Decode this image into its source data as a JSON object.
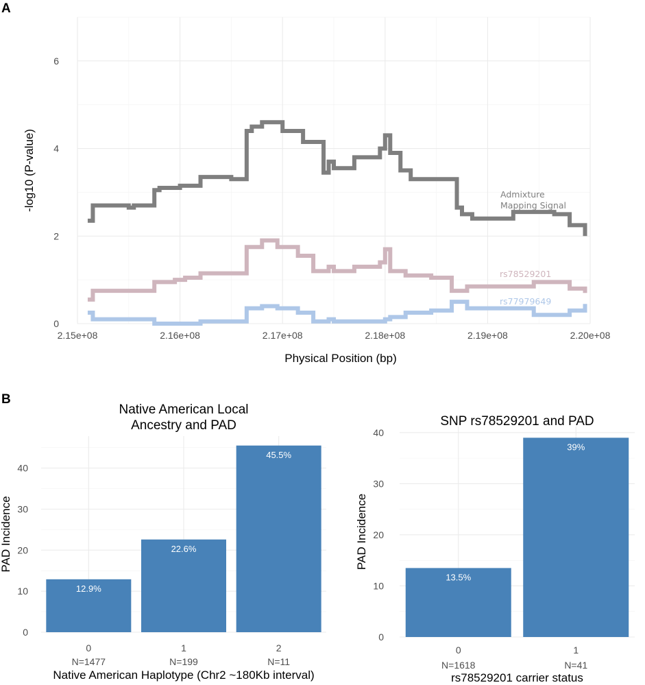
{
  "figure": {
    "panel_a_letter": "A",
    "panel_b_letter": "B"
  },
  "chart_data": [
    {
      "type": "line",
      "panel": "A",
      "title": "",
      "xlabel": "Physical Position (bp)",
      "ylabel": "-log10 (P-value)",
      "xlim": [
        215000000,
        220000000
      ],
      "ylim": [
        0,
        7
      ],
      "x_ticks": [
        215000000,
        216000000,
        217000000,
        218000000,
        219000000,
        220000000
      ],
      "x_tick_labels": [
        "2.15e+08",
        "2.16e+08",
        "2.17e+08",
        "2.18e+08",
        "2.19e+08",
        "2.20e+08"
      ],
      "y_ticks": [
        0,
        2,
        4,
        6
      ],
      "y_tick_labels": [
        "0",
        "2",
        "4",
        "6"
      ],
      "step": true,
      "series": [
        {
          "name": "Admixture Mapping Signal",
          "label_lines": [
            "Admixture",
            "Mapping Signal"
          ],
          "color": "#7f7f7f",
          "x": [
            215100000,
            215150000,
            215500000,
            215550000,
            215750000,
            215800000,
            216000000,
            216050000,
            216200000,
            216300000,
            216500000,
            216600000,
            216650000,
            216700000,
            216800000,
            217000000,
            217200000,
            217400000,
            217450000,
            217500000,
            217700000,
            217950000,
            218000000,
            218050000,
            218150000,
            218250000,
            218450000,
            218700000,
            218750000,
            218850000,
            219250000,
            219650000,
            219800000,
            219950000
          ],
          "values": [
            2.35,
            2.7,
            2.65,
            2.7,
            3.05,
            3.1,
            3.15,
            3.15,
            3.35,
            3.35,
            3.3,
            3.3,
            4.4,
            4.5,
            4.6,
            4.4,
            4.15,
            3.45,
            3.7,
            3.55,
            3.8,
            4.0,
            4.3,
            3.9,
            3.5,
            3.3,
            3.3,
            2.65,
            2.5,
            2.4,
            2.55,
            2.5,
            2.25,
            2.0
          ]
        },
        {
          "name": "rs78529201",
          "color": "#cfb5bd",
          "x": [
            215100000,
            215150000,
            215500000,
            215550000,
            215750000,
            215950000,
            216050000,
            216200000,
            216300000,
            216500000,
            216650000,
            216800000,
            216950000,
            217150000,
            217300000,
            217450000,
            217500000,
            217700000,
            217950000,
            218000000,
            218050000,
            218200000,
            218450000,
            218650000,
            218800000,
            219050000,
            219450000,
            219800000,
            219950000
          ],
          "values": [
            0.55,
            0.75,
            0.75,
            0.75,
            0.95,
            1.0,
            1.05,
            1.15,
            1.15,
            1.15,
            1.75,
            1.9,
            1.75,
            1.55,
            1.2,
            1.3,
            1.2,
            1.3,
            1.4,
            1.7,
            1.2,
            1.1,
            1.05,
            0.75,
            0.85,
            0.85,
            0.95,
            0.8,
            0.7
          ]
        },
        {
          "name": "rs77979649",
          "color": "#aec7e8",
          "x": [
            215100000,
            215150000,
            215500000,
            215550000,
            215750000,
            215950000,
            216050000,
            216200000,
            216300000,
            216500000,
            216650000,
            216800000,
            216950000,
            217150000,
            217300000,
            217450000,
            217500000,
            217700000,
            217950000,
            218000000,
            218050000,
            218200000,
            218450000,
            218650000,
            218800000,
            219050000,
            219450000,
            219800000,
            219950000
          ],
          "values": [
            0.25,
            0.1,
            0.1,
            0.1,
            0.0,
            0.0,
            0.0,
            0.05,
            0.05,
            0.05,
            0.35,
            0.4,
            0.35,
            0.25,
            0.05,
            0.1,
            0.05,
            0.05,
            0.05,
            0.1,
            0.15,
            0.25,
            0.3,
            0.5,
            0.35,
            0.35,
            0.2,
            0.3,
            0.45
          ]
        }
      ]
    },
    {
      "type": "bar",
      "panel": "B-left",
      "title_lines": [
        "Native American Local",
        "Ancestry and PAD"
      ],
      "xlabel": "Native American Haplotype (Chr2 ~180Kb interval)",
      "ylabel": "PAD Incidence",
      "ylim": [
        0,
        47.8
      ],
      "y_ticks": [
        0,
        10,
        20,
        30,
        40
      ],
      "y_tick_labels": [
        "0",
        "10",
        "20",
        "30",
        "40"
      ],
      "categories": [
        "0",
        "1",
        "2"
      ],
      "n_labels": [
        "N=1477",
        "N=199",
        "N=11"
      ],
      "values": [
        12.9,
        22.6,
        45.5
      ],
      "value_labels": [
        "12.9%",
        "22.6%",
        "45.5%"
      ],
      "color": "#4882b8"
    },
    {
      "type": "bar",
      "panel": "B-right",
      "title_lines": [
        "SNP rs78529201 and PAD"
      ],
      "xlabel": "rs78529201 carrier status",
      "ylabel": "PAD Incidence",
      "ylim": [
        0,
        41.2
      ],
      "y_ticks": [
        0,
        10,
        20,
        30,
        40
      ],
      "y_tick_labels": [
        "0",
        "10",
        "20",
        "30",
        "40"
      ],
      "categories": [
        "0",
        "1"
      ],
      "n_labels": [
        "N=1618",
        "N=41"
      ],
      "values": [
        13.5,
        39
      ],
      "value_labels": [
        "13.5%",
        "39%"
      ],
      "color": "#4882b8"
    }
  ]
}
